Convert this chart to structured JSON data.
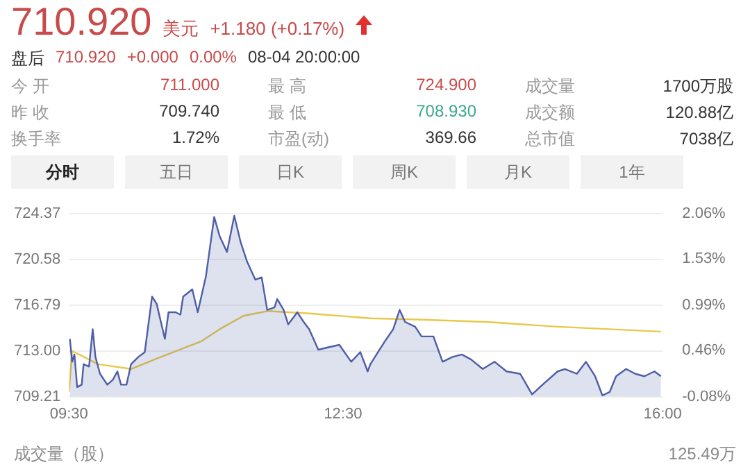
{
  "chart_data": [
    {
      "type": "other",
      "annotations": [
        "710.920",
        "美元",
        "+1.180 (+0.17%)",
        "盘后",
        "710.920",
        "+0.000",
        "0.00%",
        "08-04 20:00:00",
        "今 开",
        "711.000",
        "最 高",
        "724.900",
        "成交量",
        "1700万股",
        "昨 收",
        "709.740",
        "最 低",
        "708.930",
        "成交额",
        "120.88亿",
        "换手率",
        "1.72%",
        "市盈(动)",
        "369.66",
        "总市值",
        "7038亿",
        "分时",
        "五日",
        "日K",
        "周K",
        "月K",
        "1年"
      ]
    },
    {
      "type": "line",
      "xlim": [
        9.5,
        16
      ],
      "xticks": [
        {
          "value": 9.5,
          "label": "09:30"
        },
        {
          "value": 12.5,
          "label": "12:30"
        },
        {
          "value": 16,
          "label": "16:00"
        }
      ],
      "ylim": [
        709.21,
        724.37
      ],
      "yticks": [
        709.21,
        {
          "value": 713,
          "label": "713.00"
        },
        716.79,
        720.58,
        724.37
      ],
      "y2lim": [
        -0.08,
        2.06
      ],
      "y2ticks": [
        {
          "value": -0.08,
          "label": "-0.08%"
        },
        {
          "value": 0.46,
          "label": "0.46%"
        },
        {
          "value": 0.99,
          "label": "0.99%"
        },
        {
          "value": 1.53,
          "label": "1.53%"
        },
        {
          "value": 2.06,
          "label": "2.06%"
        }
      ],
      "grid": "y",
      "legend": false,
      "marker": "none",
      "line_style": "solid",
      "annotations": [
        "成交量（股）",
        "125.49万"
      ],
      "series": [
        {
          "type": "area",
          "color": "#4e5ea6",
          "x": [
            9.51,
            9.535,
            9.56,
            9.59,
            9.64,
            9.66,
            9.72,
            9.76,
            9.79,
            9.84,
            9.92,
            9.98,
            10.03,
            10.07,
            10.13,
            10.18,
            10.26,
            10.33,
            10.41,
            10.46,
            10.55,
            10.59,
            10.67,
            10.72,
            10.75,
            10.85,
            10.91,
            11.0,
            11.09,
            11.15,
            11.23,
            11.31,
            11.38,
            11.45,
            11.54,
            11.61,
            11.67,
            11.75,
            11.78,
            11.85,
            11.9,
            12.0,
            12.07,
            12.13,
            12.23,
            12.34,
            12.46,
            12.59,
            12.69,
            12.77,
            12.8,
            12.95,
            13.05,
            13.12,
            13.18,
            13.29,
            13.36,
            13.49,
            13.59,
            13.7,
            13.8,
            13.9,
            14.03,
            14.16,
            14.29,
            14.44,
            14.57,
            14.7,
            14.85,
            14.93,
            15.06,
            15.16,
            15.26,
            15.34,
            15.42,
            15.49,
            15.6,
            15.7,
            15.8,
            15.91,
            15.98
          ],
          "values": [
            714.0,
            712.1,
            712.7,
            710.0,
            710.2,
            711.9,
            711.7,
            714.8,
            712.5,
            711.1,
            710.2,
            710.6,
            711.3,
            710.2,
            710.2,
            711.9,
            712.5,
            712.9,
            717.5,
            716.9,
            714.0,
            716.2,
            716.2,
            716.0,
            717.5,
            718.1,
            716.2,
            719.2,
            724.1,
            722.5,
            721.2,
            724.2,
            722.0,
            720.4,
            718.9,
            719.1,
            716.4,
            716.6,
            717.3,
            716.4,
            715.2,
            716.2,
            715.4,
            714.8,
            713.1,
            713.3,
            713.5,
            712.1,
            712.9,
            711.3,
            711.9,
            713.7,
            714.8,
            716.4,
            715.4,
            715.0,
            714.2,
            714.2,
            712.1,
            712.5,
            712.7,
            712.3,
            711.5,
            712.1,
            711.3,
            711.1,
            709.4,
            710.3,
            711.3,
            711.5,
            711.1,
            712.1,
            710.9,
            709.3,
            709.6,
            710.9,
            711.5,
            711.1,
            710.9,
            711.3,
            710.9
          ]
        },
        {
          "type": "line",
          "color": "#e8c84a",
          "x": [
            9.5,
            9.535,
            9.82,
            10.18,
            10.44,
            10.95,
            11.15,
            11.41,
            11.67,
            12.13,
            12.8,
            13.31,
            14.08,
            14.85,
            15.98
          ],
          "values": [
            709.6,
            713.0,
            711.9,
            711.5,
            712.3,
            713.8,
            714.8,
            715.9,
            716.3,
            716.1,
            715.7,
            715.6,
            715.4,
            715.0,
            714.6
          ]
        }
      ]
    }
  ]
}
